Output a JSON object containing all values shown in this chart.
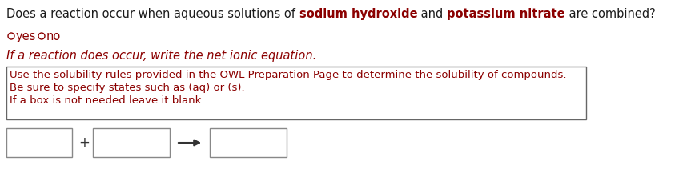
{
  "bg_color": "#ffffff",
  "line1_parts": [
    {
      "text": "Does a reaction occur when aqueous solutions of ",
      "bold": false,
      "color": "#1a1a1a"
    },
    {
      "text": "sodium hydroxide",
      "bold": true,
      "color": "#8B0000"
    },
    {
      "text": " and ",
      "bold": false,
      "color": "#1a1a1a"
    },
    {
      "text": "potassium nitrate",
      "bold": true,
      "color": "#8B0000"
    },
    {
      "text": " are combined?",
      "bold": false,
      "color": "#1a1a1a"
    }
  ],
  "radio_color": "#8B0000",
  "reaction_line": "If a reaction does occur, write the net ionic equation.",
  "reaction_color": "#8B0000",
  "hint_lines": [
    "Use the solubility rules provided in the OWL Preparation Page to determine the solubility of compounds.",
    "Be sure to specify states such as (aq) or (s).",
    "If a box is not needed leave it blank."
  ],
  "hint_color": "#8B0000",
  "font_size": 10.5,
  "small_font_size": 9.5,
  "box_edge_color": "#888888",
  "hint_box_edge_color": "#666666"
}
